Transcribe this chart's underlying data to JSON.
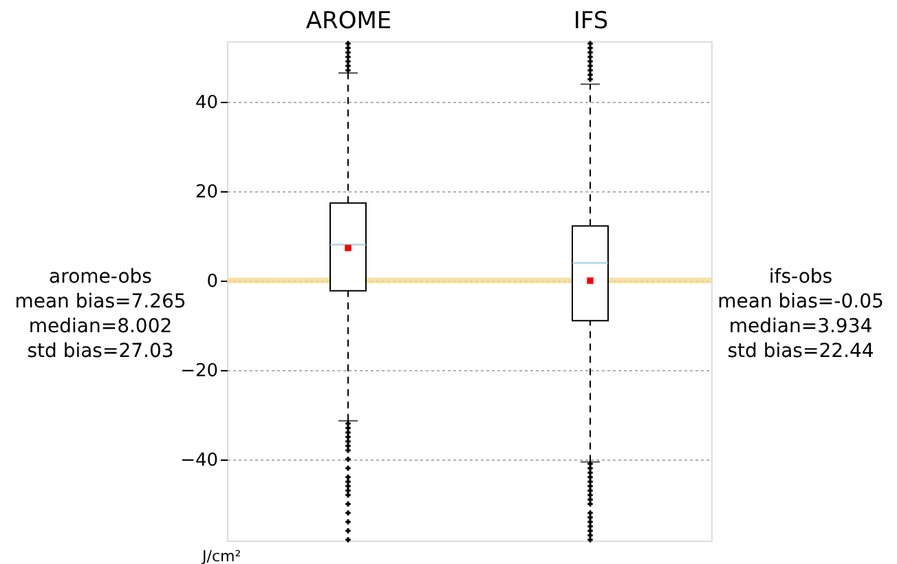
{
  "chart_data": {
    "type": "box",
    "categories": [
      "AROME",
      "IFS"
    ],
    "boxes": [
      {
        "low": -31.4,
        "q1": -2.3,
        "median": 8.002,
        "q3": 17.3,
        "high": 46.4,
        "mean": 7.265,
        "outliers": [
          47,
          48,
          49,
          50,
          51,
          52,
          53,
          -32,
          -33,
          -34,
          -35,
          -36,
          -37,
          -38,
          -40,
          -42,
          -44,
          -45,
          -46,
          -47,
          -48,
          -50,
          -52,
          -54,
          -56,
          -58
        ]
      },
      {
        "low": -40.6,
        "q1": -9.0,
        "median": 3.934,
        "q3": 12.2,
        "high": 43.9,
        "mean": -0.05,
        "outliers": [
          45,
          46,
          47,
          48,
          49,
          50,
          51,
          52,
          53,
          -41,
          -42,
          -43,
          -44,
          -45,
          -46,
          -47,
          -48,
          -49,
          -50,
          -52,
          -53,
          -54,
          -55,
          -56,
          -57,
          -58
        ]
      }
    ],
    "ylim": [
      -58.2,
      53.5
    ],
    "yticks": [
      -40,
      -20,
      0,
      20,
      40
    ],
    "grid": "y",
    "ref_lines": [
      {
        "axis": "y",
        "value": 0,
        "color": "#f5d98b"
      }
    ],
    "annotations": [
      "arome-obs\nmean bias=7.265\nmedian=8.002\nstd bias=27.03",
      "ifs-obs\nmean bias=-0.05\nmedian=3.934\nstd bias=22.44",
      "J/cm²"
    ]
  }
}
